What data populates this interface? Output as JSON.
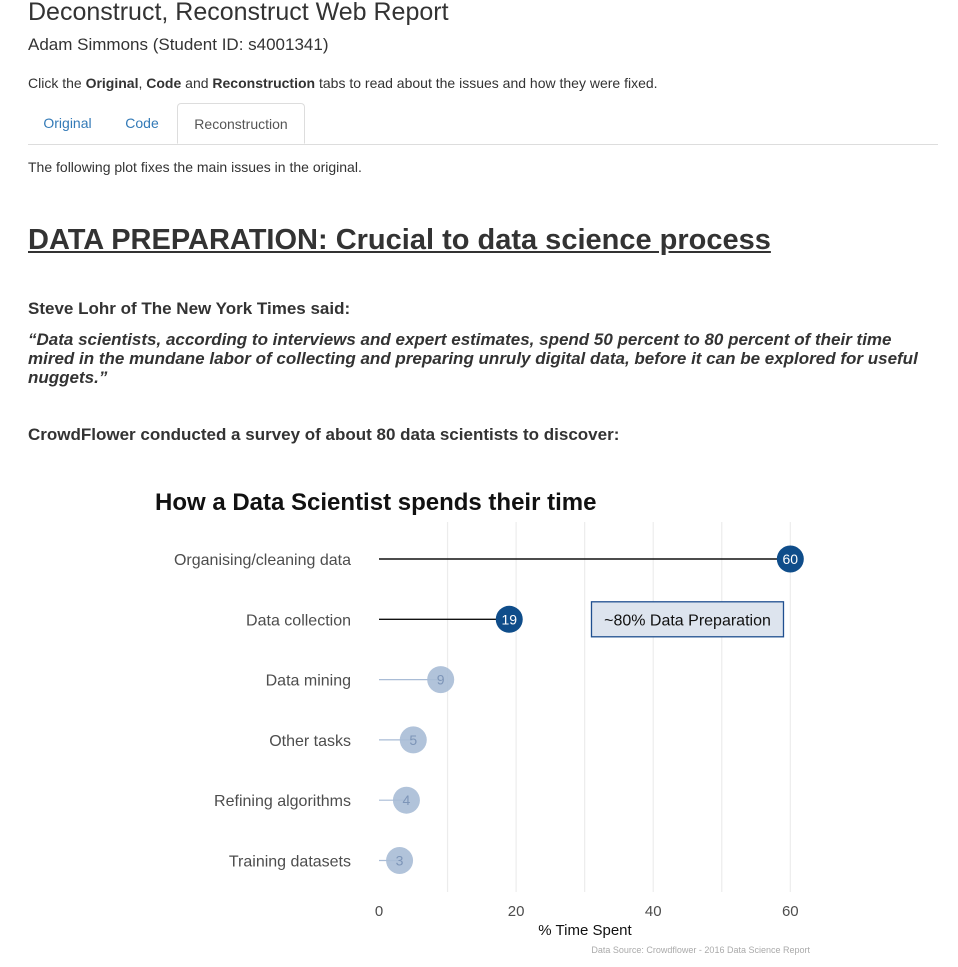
{
  "header": {
    "title": "Deconstruct, Reconstruct Web Report",
    "author": "Adam Simmons (Student ID: s4001341)",
    "intro_prefix": "Click the ",
    "intro_original": "Original",
    "intro_sep1": ", ",
    "intro_code": "Code",
    "intro_sep2": " and ",
    "intro_reconstruction": "Reconstruction",
    "intro_suffix": " tabs to read about the issues and how they were fixed."
  },
  "tabs": [
    {
      "label": "Original",
      "active": false
    },
    {
      "label": "Code",
      "active": false
    },
    {
      "label": "Reconstruction",
      "active": true
    }
  ],
  "content": {
    "lead": "The following plot fixes the main issues in the original.",
    "heading": "DATA PREPARATION: Crucial to data science process",
    "quote_intro": "Steve Lohr of The New York Times said:",
    "quote": "“Data scientists, according to interviews and expert estimates, spend 50 percent to 80 percent of their time mired in the mundane labor of collecting and preparing unruly digital data, before it can be explored for useful nuggets.”",
    "survey_intro": "CrowdFlower conducted a survey of about 80 data scientists to discover:"
  },
  "chart_data": {
    "type": "lollipop",
    "title": "How a Data Scientist spends their time",
    "xlabel": "% Time Spent",
    "ylabel": "",
    "xlim": [
      0,
      76
    ],
    "xticks": [
      0,
      20,
      40,
      60
    ],
    "grid": true,
    "categories": [
      "Organising/cleaning data",
      "Data collection",
      "Data mining",
      "Other tasks",
      "Refining algorithms",
      "Training datasets"
    ],
    "values": [
      60,
      19,
      9,
      5,
      4,
      3
    ],
    "labels": [
      "60",
      "19",
      "9",
      "5",
      "4",
      "3"
    ],
    "highlighted": [
      true,
      true,
      false,
      false,
      false,
      false
    ],
    "annotation": {
      "text": "~80% Data Preparation",
      "x": 45,
      "category": "Data collection"
    },
    "caption": "Data Source: Crowdflower - 2016 Data Science Report",
    "colors": {
      "highlight": "#0f4d8a",
      "muted": "#a9bcd6",
      "muted_text": "#7d95b8",
      "annotation_fill": "#dde4ee",
      "annotation_border": "#1f4f8f",
      "grid": "#ececec"
    }
  }
}
